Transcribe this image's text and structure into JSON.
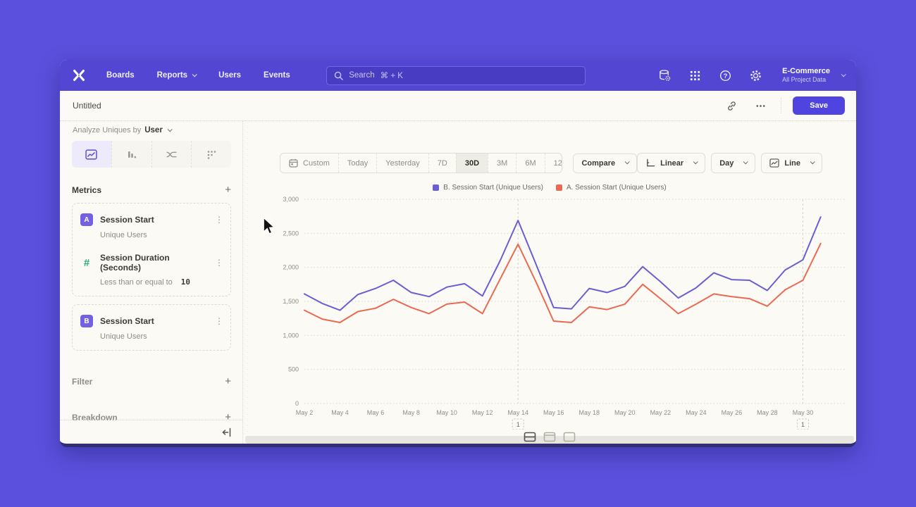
{
  "nav": {
    "items": [
      {
        "label": "Boards",
        "chevron": false
      },
      {
        "label": "Reports",
        "chevron": true
      },
      {
        "label": "Users",
        "chevron": false
      },
      {
        "label": "Events",
        "chevron": false
      }
    ],
    "search": {
      "label": "Search",
      "shortcut": "⌘ + K"
    },
    "project": {
      "name": "E-Commerce",
      "subtitle": "All Project Data"
    }
  },
  "title_bar": {
    "title": "Untitled",
    "save_label": "Save"
  },
  "sidebar": {
    "analyze": {
      "prefix": "Analyze Uniques by",
      "value": "User"
    },
    "metrics_header": "Metrics",
    "metric_groups": [
      {
        "items": [
          {
            "badge": "A",
            "badge_style": "letter",
            "name": "Session Start",
            "subtitle": "Unique Users",
            "value": ""
          },
          {
            "badge": "#",
            "badge_style": "hash",
            "name": "Session Duration (Seconds)",
            "subtitle": "Less than or equal to",
            "value": "10"
          }
        ]
      },
      {
        "items": [
          {
            "badge": "B",
            "badge_style": "letter",
            "name": "Session Start",
            "subtitle": "Unique Users",
            "value": ""
          }
        ]
      }
    ],
    "sections": [
      {
        "label": "Filter"
      },
      {
        "label": "Breakdown"
      }
    ]
  },
  "toolbar": {
    "ranges": [
      "Custom",
      "Today",
      "Yesterday",
      "7D",
      "30D",
      "3M",
      "6M",
      "12M"
    ],
    "selected_range": "30D",
    "compare_label": "Compare",
    "scale_label": "Linear",
    "interval_label": "Day",
    "chart_type_label": "Line"
  },
  "icons": {
    "plus": "+",
    "kebab": "⋮"
  },
  "chart_data": {
    "type": "line",
    "x_unit": "day",
    "categories": [
      "May 2",
      "May 3",
      "May 4",
      "May 5",
      "May 6",
      "May 7",
      "May 8",
      "May 9",
      "May 10",
      "May 11",
      "May 12",
      "May 13",
      "May 14",
      "May 15",
      "May 16",
      "May 17",
      "May 18",
      "May 19",
      "May 20",
      "May 21",
      "May 22",
      "May 23",
      "May 24",
      "May 25",
      "May 26",
      "May 27",
      "May 28",
      "May 29",
      "May 30",
      "May 31"
    ],
    "series": [
      {
        "name": "B. Session Start (Unique Users)",
        "color": "#6a5ed2",
        "values": [
          1610,
          1470,
          1370,
          1600,
          1690,
          1810,
          1630,
          1570,
          1710,
          1760,
          1580,
          2100,
          2690,
          2050,
          1410,
          1390,
          1690,
          1630,
          1720,
          2010,
          1790,
          1550,
          1700,
          1920,
          1820,
          1810,
          1660,
          1960,
          2110,
          2740
        ]
      },
      {
        "name": "A. Session Start (Unique Users)",
        "color": "#e96a51",
        "values": [
          1370,
          1240,
          1190,
          1350,
          1400,
          1530,
          1410,
          1320,
          1460,
          1490,
          1320,
          1830,
          2340,
          1790,
          1210,
          1190,
          1420,
          1380,
          1460,
          1750,
          1540,
          1320,
          1460,
          1610,
          1570,
          1540,
          1430,
          1670,
          1810,
          2350
        ]
      }
    ],
    "ylim": [
      0,
      3000
    ],
    "yticks": [
      0,
      500,
      1000,
      1500,
      2000,
      2500,
      3000
    ],
    "ytick_labels": [
      "0",
      "500",
      "1,000",
      "1,500",
      "2,000",
      "2,500",
      "3,000"
    ],
    "xtick_every": 2,
    "annotations": [
      {
        "index": 12,
        "label": "1"
      },
      {
        "index": 28,
        "label": "1"
      }
    ],
    "grid": "horizontal-dotted",
    "legend_position": "top-center"
  }
}
